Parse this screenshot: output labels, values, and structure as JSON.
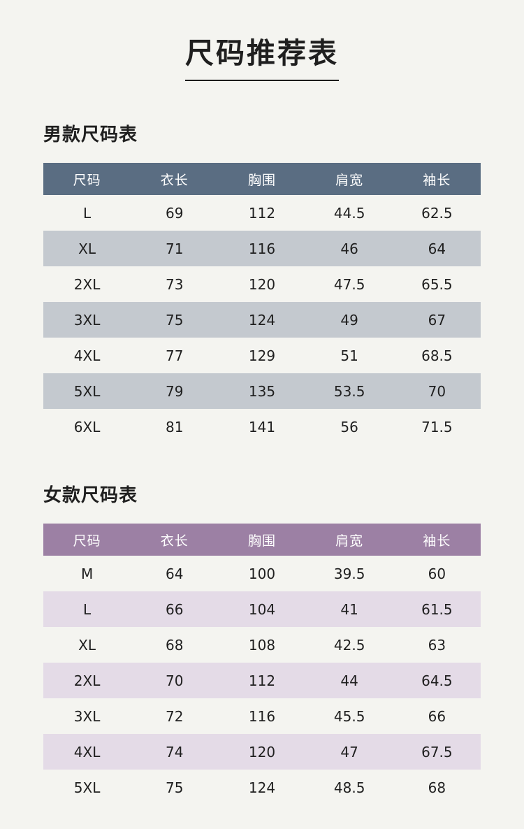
{
  "page": {
    "title": "尺码推荐表"
  },
  "colors": {
    "page_background": "#f4f4f0",
    "men_header": "#5a6d82",
    "men_alt_row": "#c4c9cf",
    "women_header": "#9c80a4",
    "women_alt_row": "#e4dbe7",
    "text": "#1f1f1f",
    "header_text": "#ffffff"
  },
  "men_section": {
    "heading": "男款尺码表",
    "columns": [
      "尺码",
      "衣长",
      "胸围",
      "肩宽",
      "袖长"
    ],
    "rows": [
      [
        "L",
        "69",
        "112",
        "44.5",
        "62.5"
      ],
      [
        "XL",
        "71",
        "116",
        "46",
        "64"
      ],
      [
        "2XL",
        "73",
        "120",
        "47.5",
        "65.5"
      ],
      [
        "3XL",
        "75",
        "124",
        "49",
        "67"
      ],
      [
        "4XL",
        "77",
        "129",
        "51",
        "68.5"
      ],
      [
        "5XL",
        "79",
        "135",
        "53.5",
        "70"
      ],
      [
        "6XL",
        "81",
        "141",
        "56",
        "71.5"
      ]
    ]
  },
  "women_section": {
    "heading": "女款尺码表",
    "columns": [
      "尺码",
      "衣长",
      "胸围",
      "肩宽",
      "袖长"
    ],
    "rows": [
      [
        "M",
        "64",
        "100",
        "39.5",
        "60"
      ],
      [
        "L",
        "66",
        "104",
        "41",
        "61.5"
      ],
      [
        "XL",
        "68",
        "108",
        "42.5",
        "63"
      ],
      [
        "2XL",
        "70",
        "112",
        "44",
        "64.5"
      ],
      [
        "3XL",
        "72",
        "116",
        "45.5",
        "66"
      ],
      [
        "4XL",
        "74",
        "120",
        "47",
        "67.5"
      ],
      [
        "5XL",
        "75",
        "124",
        "48.5",
        "68"
      ]
    ]
  }
}
